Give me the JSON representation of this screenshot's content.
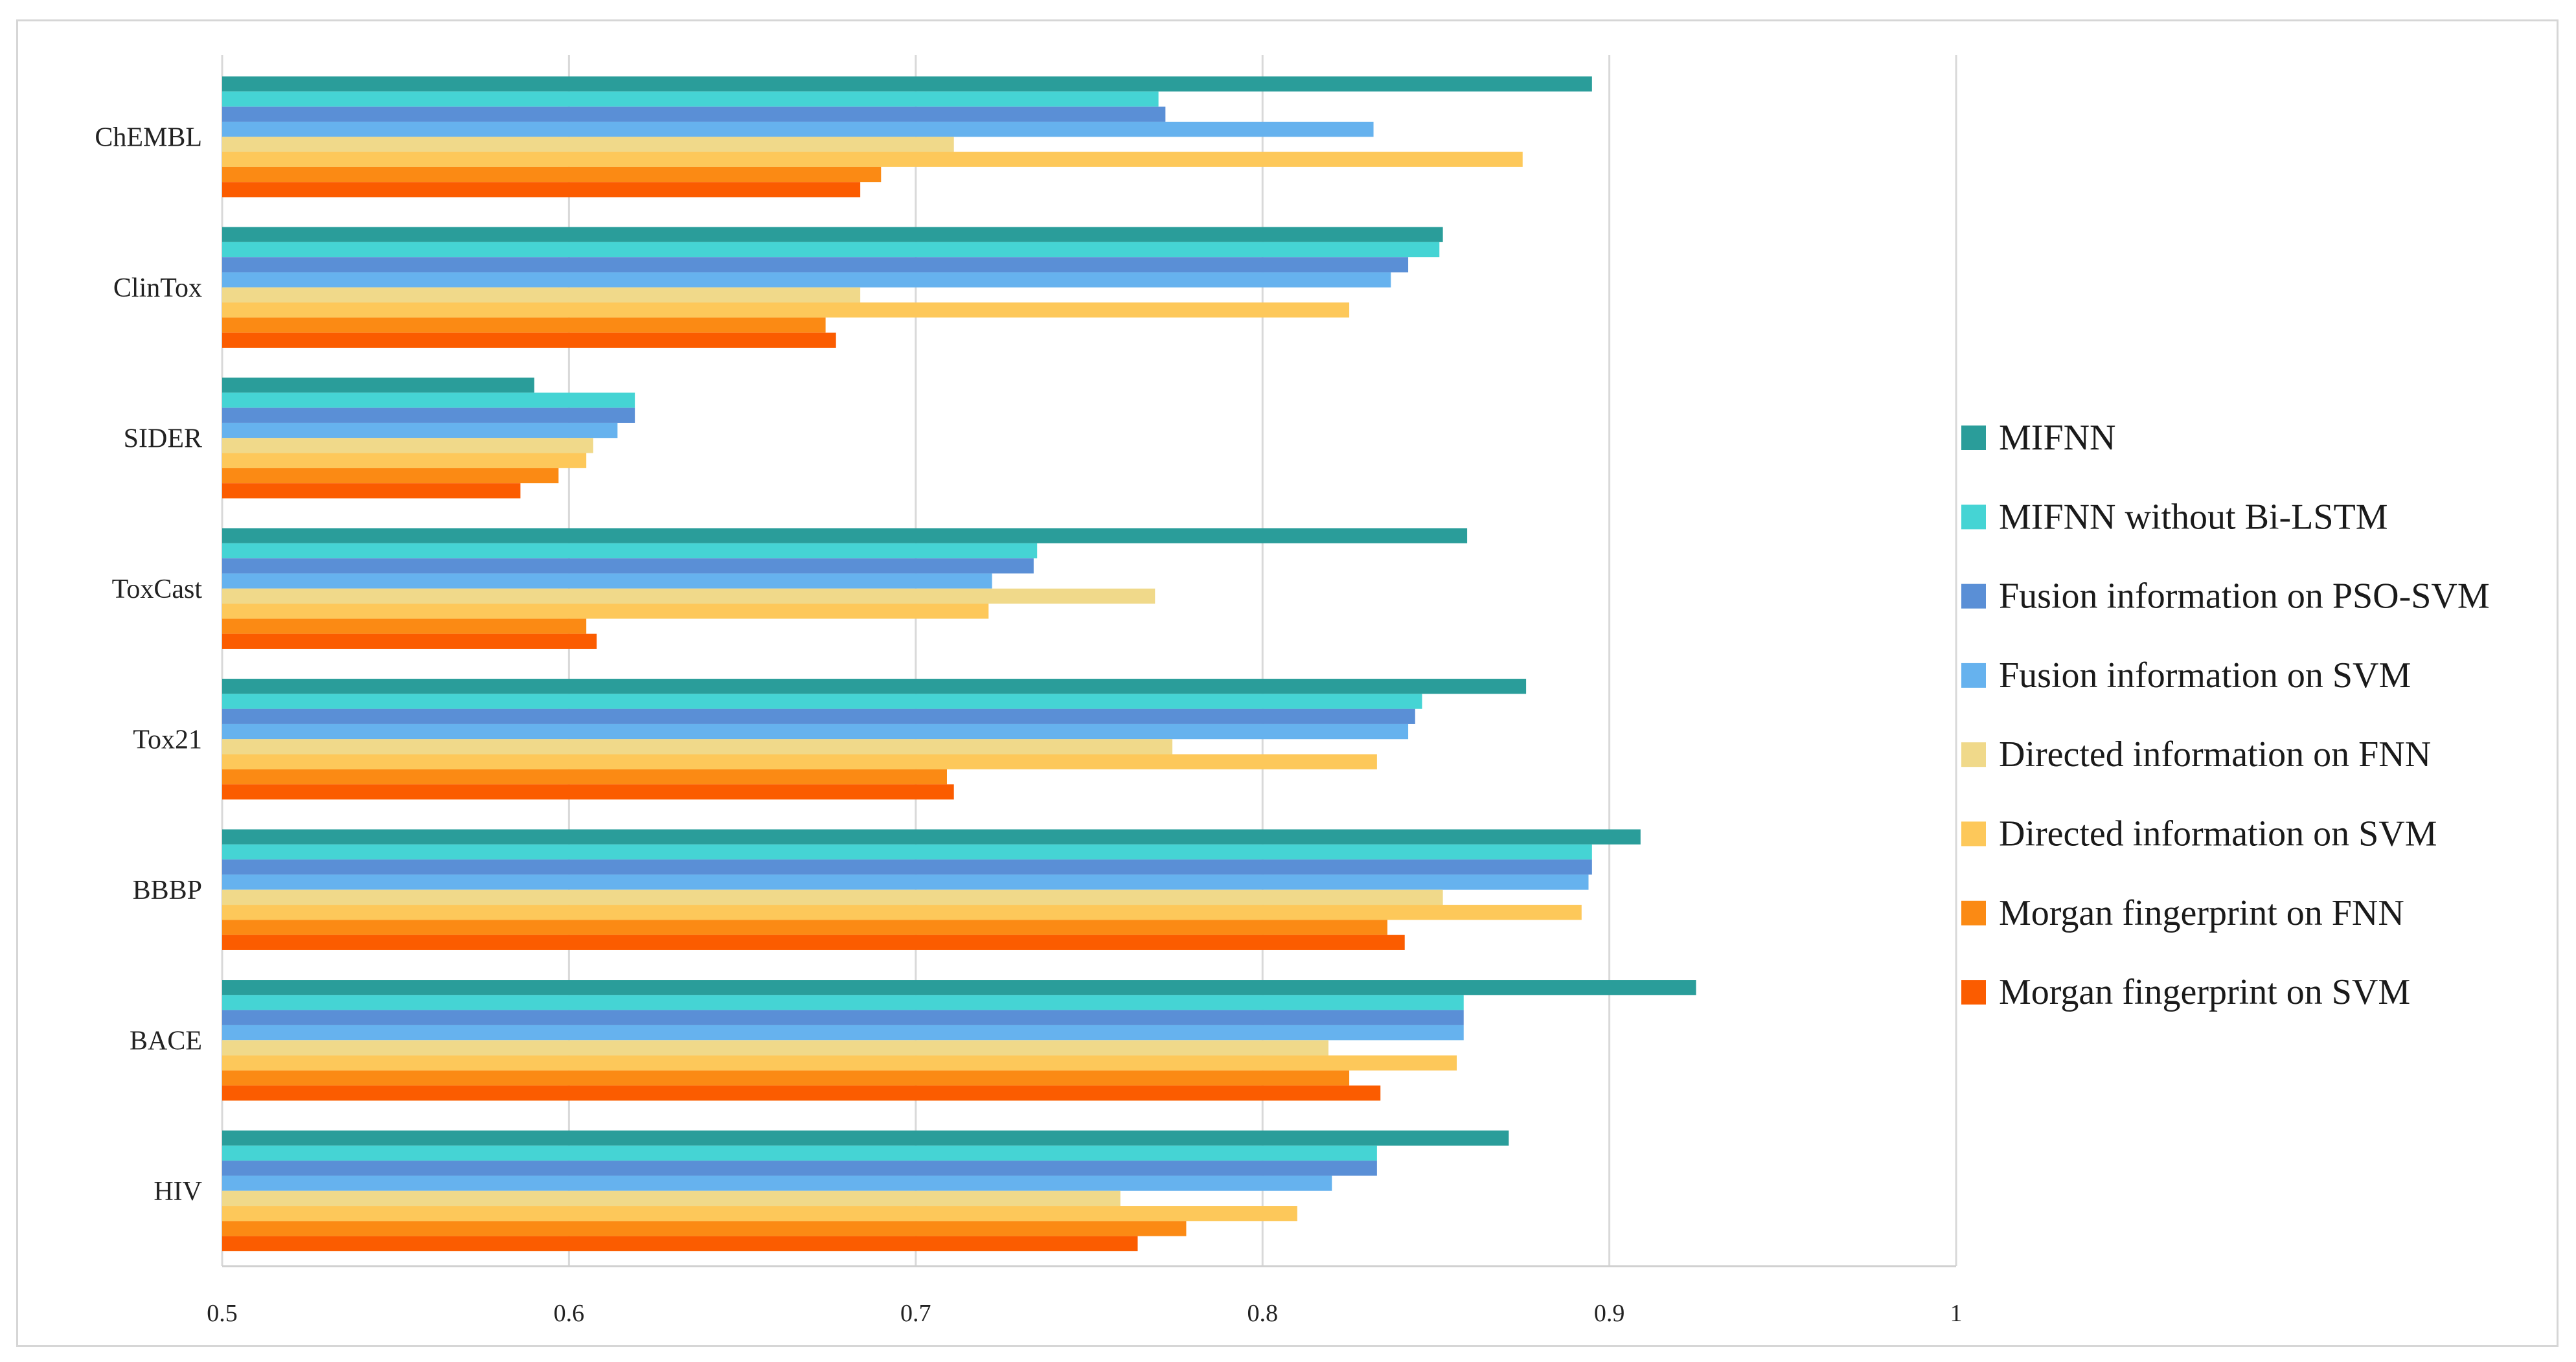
{
  "chart_data": {
    "type": "bar",
    "orientation": "horizontal",
    "title": "",
    "xlabel": "",
    "ylabel": "",
    "xlim": [
      0.5,
      1.0
    ],
    "xticks": [
      "0.5",
      "0.6",
      "0.7",
      "0.8",
      "0.9",
      "1"
    ],
    "grid": true,
    "legend_position": "right",
    "categories": [
      "ChEMBL",
      "ClinTox",
      "SIDER",
      "ToxCast",
      "Tox21",
      "BBBP",
      "BACE",
      "HIV"
    ],
    "series": [
      {
        "name": "MIFNN",
        "color": "#2a9d9a",
        "values": [
          0.895,
          0.852,
          0.59,
          0.859,
          0.876,
          0.909,
          0.925,
          0.871
        ]
      },
      {
        "name": "MIFNN without Bi-LSTM",
        "color": "#45d4d4",
        "values": [
          0.77,
          0.851,
          0.619,
          0.735,
          0.846,
          0.895,
          0.858,
          0.833
        ]
      },
      {
        "name": "Fusion information on PSO-SVM",
        "color": "#5a8fd6",
        "values": [
          0.772,
          0.842,
          0.619,
          0.734,
          0.844,
          0.895,
          0.858,
          0.833
        ]
      },
      {
        "name": "Fusion information on SVM",
        "color": "#66b2ee",
        "values": [
          0.832,
          0.837,
          0.614,
          0.722,
          0.842,
          0.894,
          0.858,
          0.82
        ]
      },
      {
        "name": "Directed information on FNN",
        "color": "#f0d98a",
        "values": [
          0.711,
          0.684,
          0.607,
          0.769,
          0.774,
          0.852,
          0.819,
          0.759
        ]
      },
      {
        "name": "Directed information on SVM",
        "color": "#fdc85a",
        "values": [
          0.875,
          0.825,
          0.605,
          0.721,
          0.833,
          0.892,
          0.856,
          0.81
        ]
      },
      {
        "name": "Morgan fingerprint on FNN",
        "color": "#fb8a14",
        "values": [
          0.69,
          0.674,
          0.597,
          0.605,
          0.709,
          0.836,
          0.825,
          0.778
        ]
      },
      {
        "name": "Morgan fingerprint on SVM",
        "color": "#fb5c00",
        "values": [
          0.684,
          0.677,
          0.586,
          0.608,
          0.711,
          0.841,
          0.834,
          0.764
        ]
      }
    ]
  }
}
